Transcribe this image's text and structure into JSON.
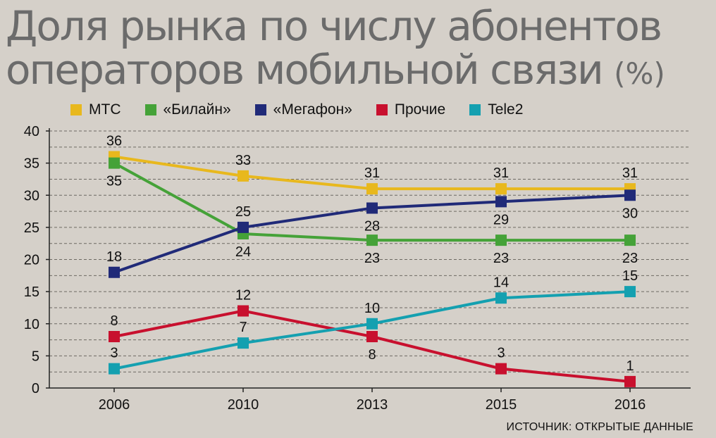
{
  "title": {
    "text": "Доля рынка по числу абонентов операторов мобильной связи",
    "unit": "(%)"
  },
  "source": "ИСТОЧНИК: ОТКРЫТЫЕ ДАННЫЕ",
  "chart_data": {
    "type": "line",
    "title": "Доля рынка по числу абонентов операторов мобильной связи (%)",
    "xlabel": "",
    "ylabel": "",
    "categories": [
      "2006",
      "2010",
      "2013",
      "2015",
      "2016"
    ],
    "ylim": [
      0,
      40
    ],
    "yticks": [
      0,
      5,
      10,
      15,
      20,
      25,
      30,
      35,
      40
    ],
    "grid": "horizontal dashed",
    "legend_position": "top",
    "series": [
      {
        "name": "МТС",
        "color": "#e8b81d",
        "values": [
          36,
          33,
          31,
          31,
          31
        ],
        "label_pos": [
          "above",
          "above",
          "above",
          "above",
          "above"
        ]
      },
      {
        "name": "«Билайн»",
        "color": "#45a238",
        "values": [
          35,
          24,
          23,
          23,
          23
        ],
        "label_pos": [
          "below",
          "below",
          "below",
          "below",
          "below"
        ]
      },
      {
        "name": "«Мегафон»",
        "color": "#202a78",
        "values": [
          18,
          25,
          28,
          29,
          30
        ],
        "label_pos": [
          "above",
          "above",
          "below",
          "below",
          "below"
        ]
      },
      {
        "name": "Прочие",
        "color": "#c8102e",
        "values": [
          8,
          12,
          8,
          3,
          1
        ],
        "label_pos": [
          "above",
          "above",
          "below",
          "above",
          "above"
        ]
      },
      {
        "name": "Tele2",
        "color": "#14a0b0",
        "values": [
          3,
          7,
          10,
          14,
          15
        ],
        "label_pos": [
          "above",
          "above",
          "above",
          "above",
          "above"
        ]
      }
    ]
  }
}
